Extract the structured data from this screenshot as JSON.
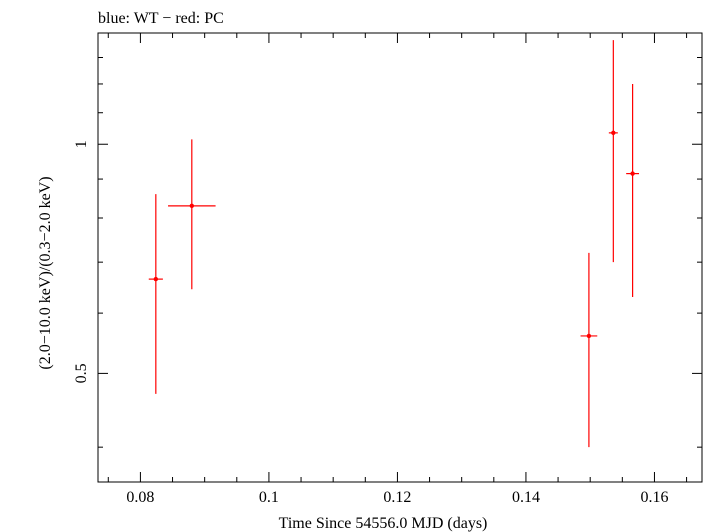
{
  "header": {
    "caption": "blue: WT − red: PC"
  },
  "chart_data": {
    "type": "scatter",
    "title": "blue: WT − red: PC",
    "xlabel": "Time Since 54556.0 MJD (days)",
    "ylabel": "(2.0−10.0 keV)/(0.3−2.0 keV)",
    "xlim": [
      0.0734,
      0.1674
    ],
    "ylim": [
      0.36,
      1.4
    ],
    "yscale": "log",
    "xticks": [
      0.08,
      0.1,
      0.12,
      0.14,
      0.16
    ],
    "xtick_labels": [
      "0.08",
      "0.1",
      "0.12",
      "0.14",
      "0.16"
    ],
    "yticks": [
      0.5,
      1
    ],
    "ytick_labels": [
      "0.5",
      "1"
    ],
    "grid": false,
    "series": [
      {
        "name": "PC",
        "color": "#ff0000",
        "points": [
          {
            "x": 0.0824,
            "y": 0.665,
            "xerr": 0.0011,
            "ylo": 0.47,
            "yhi": 0.86
          },
          {
            "x": 0.088,
            "y": 0.83,
            "xerr": 0.0037,
            "ylo": 0.645,
            "yhi": 1.015
          },
          {
            "x": 0.1498,
            "y": 0.56,
            "xerr": 0.0013,
            "ylo": 0.4,
            "yhi": 0.72
          },
          {
            "x": 0.1536,
            "y": 1.035,
            "xerr": 0.0007,
            "ylo": 0.7,
            "yhi": 1.37
          },
          {
            "x": 0.1566,
            "y": 0.915,
            "xerr": 0.001,
            "ylo": 0.63,
            "yhi": 1.2
          }
        ]
      }
    ]
  }
}
